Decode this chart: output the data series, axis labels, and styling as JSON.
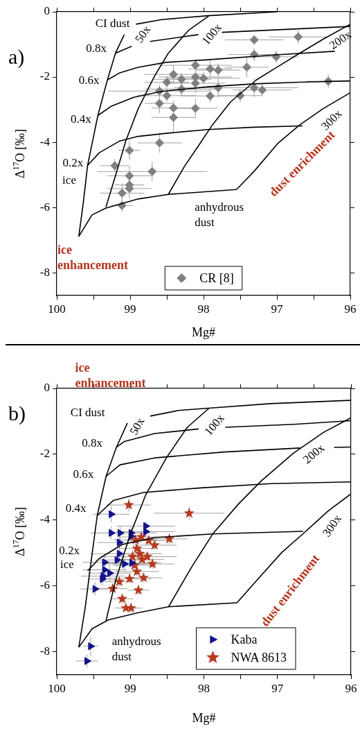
{
  "chart_data": [
    {
      "type": "scatter",
      "title": "a)",
      "xlabel": "Mg#",
      "ylabel": "Δ$^{17}$O [‰]",
      "xlim": [
        100,
        96
      ],
      "ylim": [
        -8.7,
        0
      ],
      "xticks": [
        100,
        {
          "value": 99.5,
          "label": null
        },
        99,
        {
          "value": 98.5,
          "label": null
        },
        98,
        {
          "value": 97.5,
          "label": null
        },
        97,
        {
          "value": 96.5,
          "label": null
        },
        96
      ],
      "yticks": [
        0,
        -2,
        -4,
        -6,
        -8
      ],
      "legend": "bottom",
      "series": [
        {
          "type": "line",
          "color": "#000000",
          "marker": "none",
          "x": [
            99.7,
            99.64,
            99.58,
            99.44,
            99.31,
            99.2,
            99.08
          ],
          "values": [
            -6.89,
            -5.88,
            -4.71,
            -3.18,
            -2.09,
            -1.27,
            -0.7
          ]
        },
        {
          "type": "line",
          "color": "#000000",
          "marker": "none",
          "x": [
            99.33,
            99.2,
            99.06,
            98.89,
            98.67,
            98.48,
            98.2,
            97.93
          ],
          "values": [
            -5.99,
            -5.03,
            -3.96,
            -2.97,
            -1.98,
            -1.27,
            -0.56,
            -0.13
          ]
        },
        {
          "type": "line",
          "color": "#000000",
          "marker": "none",
          "x": [
            98.48,
            98.26,
            98.07,
            97.88,
            97.63,
            97.28,
            97.0,
            96.69,
            96.37,
            96.0
          ],
          "values": [
            -5.6,
            -4.74,
            -4.11,
            -3.47,
            -2.76,
            -2.09,
            -1.7,
            -1.27,
            -0.84,
            -0.38
          ]
        },
        {
          "type": "line",
          "color": "#000000",
          "marker": "none",
          "x": [
            97.55,
            97.31,
            96.99,
            96.69,
            96.37,
            96.0
          ],
          "values": [
            -5.45,
            -4.89,
            -4.04,
            -3.47,
            -2.97,
            -2.48
          ]
        },
        {
          "type": "line",
          "color": "#000000",
          "marker": "none",
          "x": [
            99.7,
            99.52,
            99.33,
            98.89,
            98.48,
            97.55
          ],
          "values": [
            -6.89,
            -6.23,
            -6.02,
            -5.74,
            -5.6,
            -5.45
          ]
        },
        {
          "type": "line",
          "color": "#000000",
          "marker": "none",
          "x": [
            98.92,
            98.57,
            97.94,
            97.0
          ],
          "values": [
            -0.38,
            -0.24,
            -0.12,
            0
          ]
        },
        {
          "type": "line",
          "color": "#000000",
          "marker": "none",
          "x": [
            99.2,
            98.98,
            98.85,
            98.73,
            98.07,
            97.9,
            97.75,
            96.0
          ],
          "values": [
            -1.27,
            -1.06,
            null,
            -0.91,
            -0.7,
            null,
            -0.63,
            -0.45
          ]
        },
        {
          "type": "line",
          "color": "#000000",
          "marker": "none",
          "x": [
            99.31,
            99.14,
            98.89,
            98.51,
            97.94,
            97.0,
            96.21
          ],
          "values": [
            -2.09,
            -1.87,
            -1.7,
            -1.55,
            -1.47,
            -1.32,
            -1.21
          ]
        },
        {
          "type": "line",
          "color": "#000000",
          "marker": "none",
          "x": [
            99.44,
            99.26,
            98.95,
            98.57,
            97.94,
            97.31,
            96.69,
            96.0
          ],
          "values": [
            -3.18,
            -2.9,
            -2.62,
            -2.44,
            -2.3,
            -2.21,
            -2.16,
            -2.12
          ]
        },
        {
          "type": "line",
          "color": "#000000",
          "marker": "none",
          "x": [
            99.58,
            99.42,
            99.14,
            98.89,
            98.48,
            97.94,
            97.31,
            96.65
          ],
          "values": [
            -4.71,
            -4.32,
            -3.96,
            -3.82,
            -3.72,
            -3.61,
            -3.54,
            -3.5
          ]
        },
        {
          "type": "scatter",
          "name": "CR [8]",
          "color": "#808080",
          "marker": "diamond",
          "x": [
            97.31,
            96.71,
            97.31,
            97.01,
            97.41,
            98.11,
            97.91,
            97.8,
            98.41,
            98.3,
            98.11,
            98.0,
            98.11,
            98.5,
            98.6,
            98.3,
            98.5,
            97.8,
            97.91,
            97.5,
            97.31,
            97.2,
            96.3,
            98.6,
            98.41,
            98.11,
            98.41,
            98.6,
            99.01,
            99.21,
            98.7,
            99.01,
            99.01,
            99.01,
            99.11,
            99.11
          ],
          "values": [
            -0.86,
            -0.77,
            -1.31,
            -1.38,
            -1.7,
            -1.64,
            -1.75,
            -1.79,
            -1.92,
            -2.07,
            -2.0,
            -2.04,
            -2.19,
            -2.16,
            -2.43,
            -2.37,
            -2.57,
            -2.33,
            -2.58,
            -2.57,
            -2.33,
            -2.4,
            -2.13,
            -2.81,
            -2.95,
            -2.96,
            -3.24,
            -4.02,
            -4.25,
            -4.72,
            -4.9,
            -5.03,
            -5.31,
            -5.42,
            -5.56,
            -5.94
          ],
          "xerrors": [
            0.4,
            0.4,
            0.35,
            0.3,
            0.3,
            0.5,
            0.3,
            0.3,
            0.4,
            0.4,
            0.5,
            0.5,
            0.4,
            0.3,
            0.7,
            0.5,
            0.4,
            0.6,
            0.4,
            0.3,
            0.6,
            0.4,
            0.3,
            0.2,
            0.3,
            0.3,
            0.3,
            0.3,
            0.15,
            0.2,
            0.75,
            0.3,
            0.2,
            0.3,
            0.3,
            0.15
          ],
          "errors": [
            0.15,
            0.2,
            0.2,
            0.2,
            0.3,
            0.2,
            0.25,
            0.2,
            0.3,
            0.2,
            0.2,
            0.2,
            0.3,
            0.2,
            0.2,
            0.2,
            0.2,
            0.3,
            0.2,
            0.2,
            0.3,
            0.2,
            0.2,
            0.3,
            0.2,
            0.3,
            0.5,
            0.3,
            0.3,
            0.2,
            0.3,
            0.3,
            0.2,
            0.3,
            0.3,
            0.2
          ]
        }
      ],
      "annotations": [
        "CI dust",
        "0.8x",
        "0.6x",
        "0.4x",
        "0.2x",
        "ice",
        "50x",
        "100x",
        "200x",
        "300x",
        "anhydrous\ndust",
        "ice\nenhancement",
        "dust enrichment"
      ]
    },
    {
      "type": "scatter",
      "title": "b)",
      "xlabel": "Mg#",
      "ylabel": "Δ$^{17}$O [‰]",
      "xlim": [
        100,
        96
      ],
      "ylim": [
        -8.7,
        0
      ],
      "xticks": [
        100,
        {
          "value": 99.5,
          "label": null
        },
        99,
        {
          "value": 98.5,
          "label": null
        },
        98,
        {
          "value": 97.5,
          "label": null
        },
        97,
        {
          "value": 96.5,
          "label": null
        },
        96
      ],
      "yticks": [
        0,
        -2,
        -4,
        -6,
        -8
      ],
      "legend": "bottom right",
      "series": [
        {
          "type": "line",
          "color": "#000000",
          "marker": "none",
          "x": [
            99.7,
            99.61,
            99.55,
            99.45,
            99.33,
            99.19,
            99.04
          ],
          "values": [
            -7.86,
            -6.6,
            -5.54,
            -3.86,
            -2.67,
            -1.79,
            -1.05
          ]
        },
        {
          "type": "line",
          "color": "#000000",
          "marker": "none",
          "x": [
            99.33,
            99.2,
            99.01,
            98.79,
            98.51,
            98.23,
            97.93
          ],
          "values": [
            -7.05,
            -5.83,
            -4.49,
            -3.23,
            -2.11,
            -1.19,
            -0.6
          ]
        },
        {
          "type": "line",
          "color": "#000000",
          "marker": "none",
          "x": [
            98.48,
            98.16,
            97.88,
            97.53,
            97.22,
            96.78,
            96.37,
            96.0
          ],
          "values": [
            -6.63,
            -5.4,
            -4.42,
            -3.51,
            -2.81,
            -1.96,
            -1.33,
            -0.89
          ]
        },
        {
          "type": "line",
          "color": "#000000",
          "marker": "none",
          "x": [
            97.55,
            97.25,
            96.94,
            96.62,
            96.31,
            96.0
          ],
          "values": [
            -6.51,
            -5.75,
            -4.98,
            -4.35,
            -3.72,
            -3.2
          ]
        },
        {
          "type": "line",
          "color": "#000000",
          "marker": "none",
          "x": [
            99.7,
            99.52,
            99.3,
            98.89,
            98.48,
            97.55
          ],
          "values": [
            -7.86,
            -7.3,
            -7.03,
            -6.81,
            -6.63,
            -6.51
          ]
        },
        {
          "type": "line",
          "color": "#000000",
          "marker": "none",
          "x": [
            98.73,
            98.35,
            97.94,
            97.09,
            96.0
          ],
          "values": [
            -0.84,
            -0.67,
            -0.6,
            -0.46,
            -0.36
          ]
        },
        {
          "type": "line",
          "color": "#000000",
          "marker": "none",
          "x": [
            99.19,
            99.08,
            98.67,
            98.07,
            97.9,
            97.71,
            96.78,
            96.0
          ],
          "values": [
            -1.79,
            -1.61,
            -1.37,
            -1.23,
            null,
            -1.18,
            -1.09,
            -0.98
          ]
        },
        {
          "type": "line",
          "color": "#000000",
          "marker": "none",
          "x": [
            99.33,
            99.14,
            98.67,
            97.72,
            96.69,
            96.45,
            96.23,
            96.0
          ],
          "values": [
            -2.67,
            -2.32,
            -2.11,
            -1.93,
            -1.81,
            null,
            -1.79,
            -1.78
          ]
        },
        {
          "type": "line",
          "color": "#000000",
          "marker": "none",
          "x": [
            99.45,
            99.23,
            98.82,
            98.04,
            97.09,
            96.0
          ],
          "values": [
            -3.86,
            -3.4,
            -3.16,
            -3.02,
            -2.89,
            -2.84
          ]
        },
        {
          "type": "line",
          "color": "#000000",
          "marker": "none",
          "x": [
            99.58,
            99.42,
            99.11,
            98.67,
            97.88,
            96.65
          ],
          "values": [
            -5.54,
            -5.16,
            -4.74,
            -4.53,
            -4.42,
            -4.34
          ]
        },
        {
          "type": "scatter",
          "name": "Kaba",
          "color": "#14148c",
          "marker": "triangle",
          "x": [
            99.26,
            99.26,
            99.14,
            98.99,
            98.79,
            98.79,
            98.99,
            99.15,
            99.15,
            99.35,
            99.18,
            99.08,
            98.98,
            99.35,
            99.28,
            99.37,
            99.38,
            99.48,
            99.54,
            99.59
          ],
          "values": [
            -3.82,
            -4.39,
            -4.39,
            -4.39,
            -4.18,
            -4.35,
            -4.49,
            -4.68,
            -5.02,
            -5.28,
            -5.21,
            -5.33,
            -5.3,
            -5.51,
            -5.61,
            -5.7,
            -5.79,
            -6.09,
            -7.83,
            -8.28
          ],
          "xerrors": [
            0.25,
            0.2,
            0.4,
            0.35,
            0.4,
            0.4,
            null,
            0.3,
            0.4,
            0.3,
            0.3,
            0.3,
            0.4,
            0.3,
            0.3,
            0.3,
            0.2,
            0.2,
            0.1,
            0.15
          ],
          "errors": [
            0.25,
            0.2,
            0.2,
            0.2,
            0.15,
            0.15,
            0.2,
            0.2,
            0.2,
            0.2,
            0.2,
            0.2,
            0.2,
            0.25,
            0.25,
            0.2,
            0.2,
            0.2,
            0.3,
            0.2
          ]
        },
        {
          "type": "scatter",
          "name": "NWA 8613",
          "color": "#b83a1e",
          "marker": "star",
          "x": [
            99.02,
            98.2,
            98.47,
            98.93,
            98.85,
            98.75,
            98.67,
            98.91,
            98.87,
            98.97,
            98.77,
            98.84,
            98.7,
            98.94,
            98.91,
            99.01,
            98.82,
            99.15,
            99.24,
            98.89,
            99.11,
            98.99,
            99.06
          ],
          "values": [
            -3.54,
            -3.79,
            -4.57,
            -4.6,
            -4.51,
            -4.62,
            -4.76,
            -4.86,
            -5.02,
            -5.11,
            -5.11,
            -5.19,
            -5.33,
            -5.37,
            -5.56,
            -5.78,
            -5.75,
            -5.87,
            -6.08,
            -6.13,
            -6.39,
            -6.67,
            -6.67
          ],
          "xerrors": [
            0.3,
            0.48,
            0.25,
            0.3,
            0.3,
            0.3,
            0.3,
            0.25,
            0.3,
            0.4,
            0.4,
            0.3,
            0.3,
            0.3,
            0.3,
            0.3,
            0.25,
            0.2,
            0.2,
            0.15,
            0.15,
            0.15,
            0.15
          ],
          "errors": [
            0.2,
            0.2,
            0.15,
            0.15,
            0.15,
            0.15,
            0.15,
            0.15,
            0.15,
            0.2,
            0.15,
            0.15,
            0.15,
            0.2,
            0.15,
            0.15,
            0.15,
            0.15,
            0.15,
            0.15,
            0.15,
            0.15,
            null
          ]
        }
      ],
      "annotations": [
        "CI dust",
        "0.8x",
        "0.6x",
        "0.4x",
        "0.2x",
        "ice",
        "50x",
        "100x",
        "200x",
        "300x",
        "anhydrous\ndust",
        "ice\nenhancement",
        "dust enrichment"
      ]
    }
  ]
}
